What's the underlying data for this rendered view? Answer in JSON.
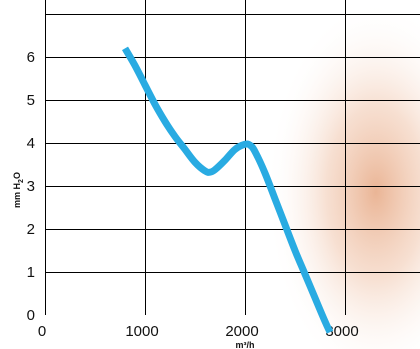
{
  "chart_data": {
    "type": "line",
    "x": [
      800,
      900,
      1000,
      1100,
      1200,
      1300,
      1400,
      1500,
      1600,
      1650,
      1700,
      1800,
      1900,
      2000,
      2050,
      2100,
      2200,
      2300,
      2400,
      2500,
      2600,
      2700,
      2800,
      2850
    ],
    "y": [
      6.2,
      5.8,
      5.35,
      4.9,
      4.5,
      4.15,
      3.85,
      3.55,
      3.35,
      3.32,
      3.38,
      3.6,
      3.85,
      3.97,
      3.95,
      3.8,
      3.3,
      2.7,
      2.1,
      1.5,
      0.95,
      0.4,
      -0.15,
      -0.4
    ],
    "xlabel_main": "m³/h",
    "ylabel": {
      "prefix": "mm H",
      "sub": "2",
      "suffix": "O"
    },
    "x_ticks": [
      "0",
      "1000",
      "2000",
      "3000"
    ],
    "y_ticks": [
      "0",
      "1",
      "2",
      "3",
      "4",
      "5",
      "6"
    ],
    "xlim": [
      0,
      3800
    ],
    "ylim": [
      0,
      7
    ],
    "grid": true,
    "colors": {
      "line": "#29abe2",
      "grid": "#000000",
      "background_glow": "#c65a2e"
    }
  }
}
